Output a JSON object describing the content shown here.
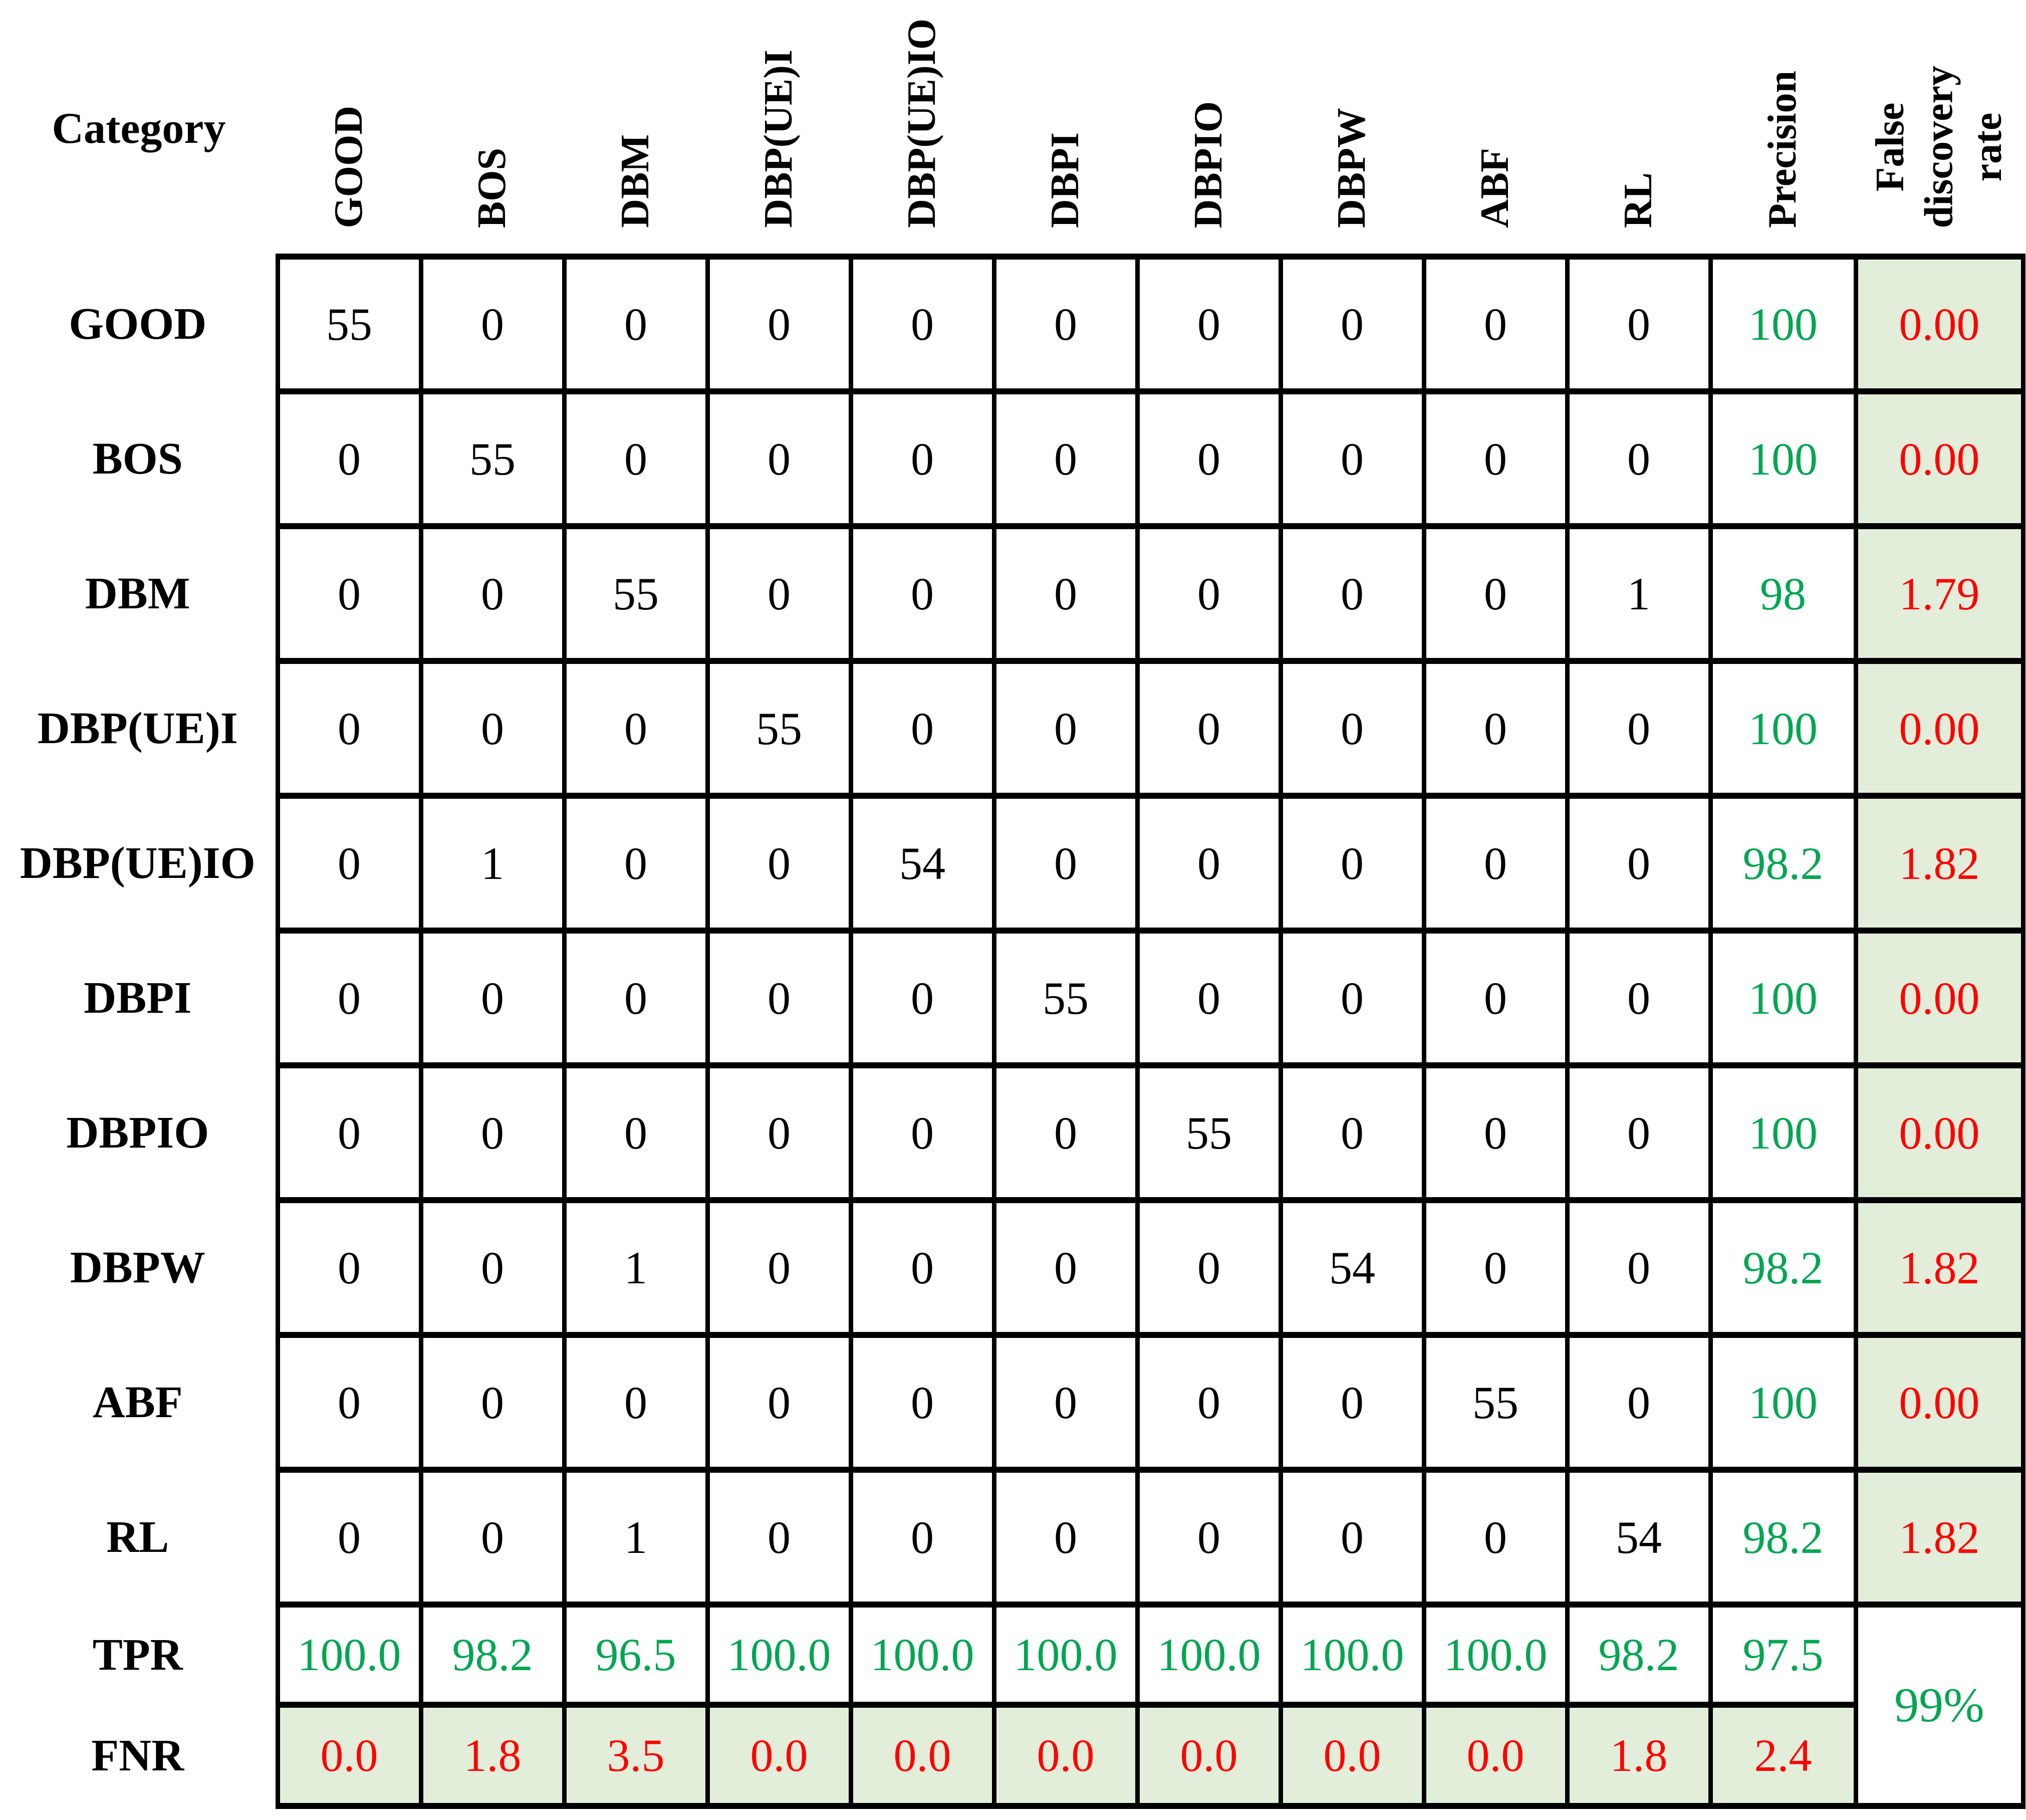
{
  "chart_data": {
    "type": "table",
    "subtype": "confusion-matrix",
    "corner_label": "Category",
    "column_headers": [
      {
        "label": "GOOD",
        "lines": [
          "GOOD"
        ]
      },
      {
        "label": "BOS",
        "lines": [
          "BOS"
        ]
      },
      {
        "label": "DBM",
        "lines": [
          "DBM"
        ]
      },
      {
        "label": "DBP(UE)I",
        "lines": [
          "DBP(UE)I"
        ]
      },
      {
        "label": "DBP(UE)IO",
        "lines": [
          "DBP(UE)IO"
        ]
      },
      {
        "label": "DBPI",
        "lines": [
          "DBPI"
        ]
      },
      {
        "label": "DBPIO",
        "lines": [
          "DBPIO"
        ]
      },
      {
        "label": "DBPW",
        "lines": [
          "DBPW"
        ]
      },
      {
        "label": "ABF",
        "lines": [
          "ABF"
        ]
      },
      {
        "label": "RL",
        "lines": [
          "RL"
        ]
      },
      {
        "label": "Precision",
        "lines": [
          "Precision"
        ]
      },
      {
        "label": "False discovery rate",
        "lines": [
          "False",
          "discovery",
          "rate"
        ]
      }
    ],
    "rows": [
      {
        "label": "GOOD",
        "counts": [
          55,
          0,
          0,
          0,
          0,
          0,
          0,
          0,
          0,
          0
        ],
        "precision": "100",
        "false_discovery_rate": "0.00"
      },
      {
        "label": "BOS",
        "counts": [
          0,
          55,
          0,
          0,
          0,
          0,
          0,
          0,
          0,
          0
        ],
        "precision": "100",
        "false_discovery_rate": "0.00"
      },
      {
        "label": "DBM",
        "counts": [
          0,
          0,
          55,
          0,
          0,
          0,
          0,
          0,
          0,
          1
        ],
        "precision": "98",
        "false_discovery_rate": "1.79"
      },
      {
        "label": "DBP(UE)I",
        "counts": [
          0,
          0,
          0,
          55,
          0,
          0,
          0,
          0,
          0,
          0
        ],
        "precision": "100",
        "false_discovery_rate": "0.00"
      },
      {
        "label": "DBP(UE)IO",
        "counts": [
          0,
          1,
          0,
          0,
          54,
          0,
          0,
          0,
          0,
          0
        ],
        "precision": "98.2",
        "false_discovery_rate": "1.82"
      },
      {
        "label": "DBPI",
        "counts": [
          0,
          0,
          0,
          0,
          0,
          55,
          0,
          0,
          0,
          0
        ],
        "precision": "100",
        "false_discovery_rate": "0.00"
      },
      {
        "label": "DBPIO",
        "counts": [
          0,
          0,
          0,
          0,
          0,
          0,
          55,
          0,
          0,
          0
        ],
        "precision": "100",
        "false_discovery_rate": "0.00"
      },
      {
        "label": "DBPW",
        "counts": [
          0,
          0,
          1,
          0,
          0,
          0,
          0,
          54,
          0,
          0
        ],
        "precision": "98.2",
        "false_discovery_rate": "1.82"
      },
      {
        "label": "ABF",
        "counts": [
          0,
          0,
          0,
          0,
          0,
          0,
          0,
          0,
          55,
          0
        ],
        "precision": "100",
        "false_discovery_rate": "0.00"
      },
      {
        "label": "RL",
        "counts": [
          0,
          0,
          1,
          0,
          0,
          0,
          0,
          0,
          0,
          54
        ],
        "precision": "98.2",
        "false_discovery_rate": "1.82"
      }
    ],
    "tpr_row": {
      "label": "TPR",
      "values": [
        "100.0",
        "98.2",
        "96.5",
        "100.0",
        "100.0",
        "100.0",
        "100.0",
        "100.0",
        "100.0",
        "98.2"
      ],
      "precision_column_value": "97.5"
    },
    "fnr_row": {
      "label": "FNR",
      "values": [
        "0.0",
        "1.8",
        "3.5",
        "0.0",
        "0.0",
        "0.0",
        "0.0",
        "0.0",
        "0.0",
        "1.8"
      ],
      "precision_column_value": "2.4"
    },
    "overall_accuracy": "99%"
  },
  "colors": {
    "positive_text": "#00a651",
    "negative_text": "#fe0000",
    "highlight_bg": "#e3eeda",
    "border": "#000000",
    "text": "#000000",
    "background": "#ffffff"
  }
}
